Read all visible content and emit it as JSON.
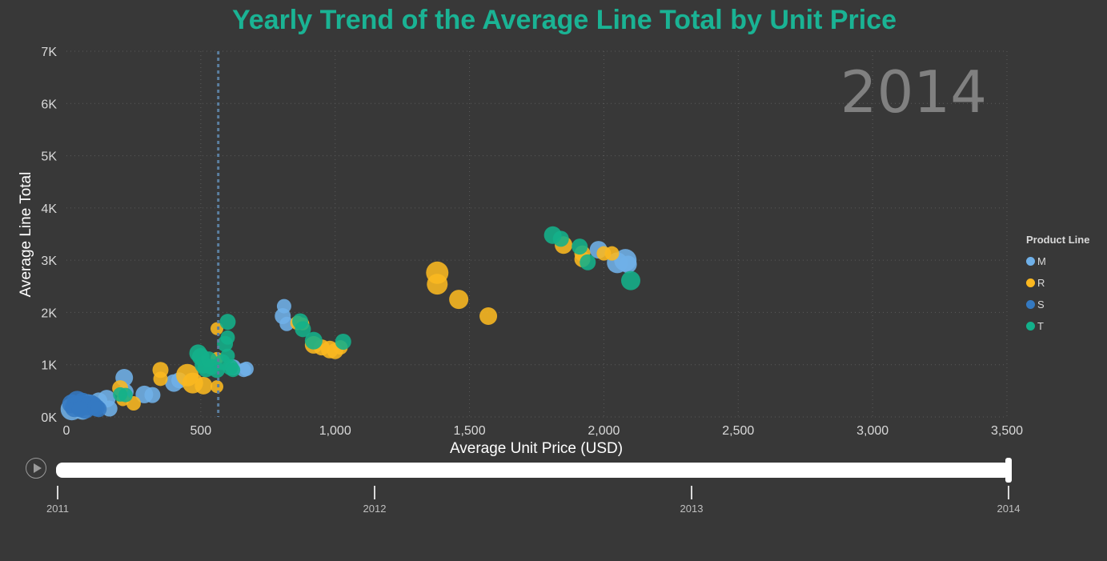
{
  "colors": {
    "background": "#383838",
    "title": "#1ab394",
    "grid": "#5a5a5a",
    "reference_line": "#5b7fa0"
  },
  "legend": {
    "title": "Product Line",
    "items": [
      {
        "label": "M",
        "color": "#6fb0e8"
      },
      {
        "label": "R",
        "color": "#fbb820"
      },
      {
        "label": "S",
        "color": "#3479c1"
      },
      {
        "label": "T",
        "color": "#13b08a"
      }
    ]
  },
  "timeline": {
    "play_icon": "play-icon",
    "labels": [
      "2011",
      "2012",
      "2013",
      "2014"
    ],
    "current": "2014",
    "progress": 1.0
  },
  "chart_data": {
    "type": "scatter",
    "title": "Yearly Trend of the Average Line Total by Unit Price",
    "xlabel": "Average Unit Price (USD)",
    "ylabel": "Average Line Total",
    "xlim": [
      0,
      3500
    ],
    "ylim": [
      0,
      7000
    ],
    "x_ticks": [
      0,
      500,
      1000,
      1500,
      2000,
      2500,
      3000,
      3500
    ],
    "x_tick_labels": [
      "0",
      "500",
      "1,000",
      "1,500",
      "2,000",
      "2,500",
      "3,000",
      "3,500"
    ],
    "y_ticks": [
      0,
      1000,
      2000,
      3000,
      4000,
      5000,
      6000,
      7000
    ],
    "y_tick_labels": [
      "0K",
      "1K",
      "2K",
      "3K",
      "4K",
      "5K",
      "6K",
      "7K"
    ],
    "grid": true,
    "play_axis_value": "2014",
    "reference_line_x": 565,
    "legend_position": "right",
    "series": [
      {
        "name": "M",
        "color": "#6fb0e8",
        "points": [
          [
            20,
            150,
            14
          ],
          [
            40,
            200,
            13
          ],
          [
            60,
            130,
            12
          ],
          [
            80,
            250,
            12
          ],
          [
            120,
            300,
            11
          ],
          [
            150,
            350,
            11
          ],
          [
            160,
            160,
            10
          ],
          [
            215,
            750,
            11
          ],
          [
            220,
            480,
            10
          ],
          [
            290,
            430,
            11
          ],
          [
            320,
            420,
            10
          ],
          [
            400,
            650,
            11
          ],
          [
            420,
            700,
            10
          ],
          [
            620,
            950,
            10
          ],
          [
            660,
            900,
            9
          ],
          [
            670,
            920,
            9
          ],
          [
            810,
            2120,
            9
          ],
          [
            805,
            1930,
            10
          ],
          [
            820,
            1780,
            9
          ],
          [
            1980,
            3200,
            11
          ],
          [
            2050,
            2950,
            13
          ],
          [
            2080,
            3000,
            14
          ],
          [
            2090,
            2920,
            11
          ]
        ]
      },
      {
        "name": "R",
        "color": "#fbb820",
        "points": [
          [
            200,
            550,
            10
          ],
          [
            210,
            330,
            8
          ],
          [
            250,
            260,
            9
          ],
          [
            350,
            900,
            10
          ],
          [
            350,
            730,
            9
          ],
          [
            450,
            800,
            14
          ],
          [
            470,
            650,
            13
          ],
          [
            510,
            600,
            11
          ],
          [
            560,
            1690,
            8
          ],
          [
            560,
            1120,
            8
          ],
          [
            560,
            580,
            8
          ],
          [
            860,
            1800,
            9
          ],
          [
            880,
            1780,
            8
          ],
          [
            920,
            1380,
            11
          ],
          [
            950,
            1330,
            10
          ],
          [
            980,
            1290,
            11
          ],
          [
            1000,
            1260,
            10
          ],
          [
            1020,
            1330,
            9
          ],
          [
            1380,
            2760,
            14
          ],
          [
            1380,
            2540,
            13
          ],
          [
            1460,
            2250,
            12
          ],
          [
            1570,
            1930,
            11
          ],
          [
            1850,
            3290,
            11
          ],
          [
            1920,
            3130,
            10
          ],
          [
            1920,
            3020,
            10
          ],
          [
            2000,
            3130,
            9
          ],
          [
            2030,
            3130,
            9
          ]
        ]
      },
      {
        "name": "S",
        "color": "#3479c1",
        "points": [
          [
            20,
            250,
            12
          ],
          [
            30,
            180,
            12
          ],
          [
            40,
            300,
            13
          ],
          [
            50,
            220,
            12
          ],
          [
            60,
            280,
            12
          ],
          [
            70,
            150,
            12
          ],
          [
            80,
            200,
            11
          ],
          [
            90,
            260,
            11
          ],
          [
            100,
            230,
            11
          ],
          [
            110,
            180,
            11
          ],
          [
            120,
            150,
            10
          ],
          [
            50,
            150,
            10
          ]
        ]
      },
      {
        "name": "T",
        "color": "#13b08a",
        "points": [
          [
            200,
            430,
            9
          ],
          [
            220,
            420,
            9
          ],
          [
            490,
            1220,
            11
          ],
          [
            500,
            1150,
            11
          ],
          [
            510,
            1000,
            11
          ],
          [
            520,
            930,
            11
          ],
          [
            530,
            1100,
            10
          ],
          [
            540,
            960,
            10
          ],
          [
            560,
            900,
            10
          ],
          [
            580,
            1050,
            10
          ],
          [
            590,
            1400,
            10
          ],
          [
            600,
            1520,
            9
          ],
          [
            600,
            1820,
            10
          ],
          [
            600,
            1170,
            9
          ],
          [
            610,
            950,
            10
          ],
          [
            620,
            900,
            9
          ],
          [
            870,
            1830,
            10
          ],
          [
            880,
            1680,
            10
          ],
          [
            920,
            1460,
            11
          ],
          [
            1030,
            1440,
            10
          ],
          [
            1810,
            3480,
            11
          ],
          [
            1840,
            3410,
            10
          ],
          [
            1910,
            3260,
            10
          ],
          [
            1940,
            2960,
            10
          ],
          [
            2100,
            2610,
            12
          ]
        ]
      }
    ]
  }
}
